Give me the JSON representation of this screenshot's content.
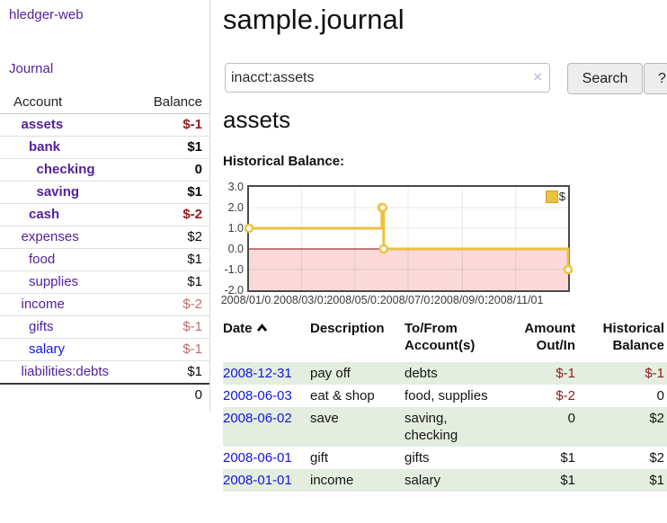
{
  "sidebar": {
    "brand": "hledger-web",
    "journal_link": "Journal",
    "accounts_table": {
      "header_account": "Account",
      "header_balance": "Balance",
      "rows": [
        {
          "name": "assets",
          "depth": 1,
          "bold": true,
          "balance": "$-1",
          "balance_style": "neg"
        },
        {
          "name": "bank",
          "depth": 2,
          "bold": true,
          "balance": "$1",
          "balance_style": ""
        },
        {
          "name": "checking",
          "depth": 3,
          "bold": true,
          "balance": "0",
          "balance_style": ""
        },
        {
          "name": "saving",
          "depth": 3,
          "bold": true,
          "balance": "$1",
          "balance_style": ""
        },
        {
          "name": "cash",
          "depth": 2,
          "bold": true,
          "balance": "$-2",
          "balance_style": "neg"
        },
        {
          "name": "expenses",
          "depth": 1,
          "bold": false,
          "balance": "$2",
          "balance_style": ""
        },
        {
          "name": "food",
          "depth": 2,
          "bold": false,
          "balance": "$1",
          "balance_style": ""
        },
        {
          "name": "supplies",
          "depth": 2,
          "bold": false,
          "balance": "$1",
          "balance_style": ""
        },
        {
          "name": "income",
          "depth": 1,
          "bold": false,
          "balance": "$-2",
          "balance_style": "muted"
        },
        {
          "name": "gifts",
          "depth": 2,
          "bold": false,
          "balance": "$-1",
          "balance_style": "muted"
        },
        {
          "name": "salary",
          "depth": 2,
          "bold": false,
          "name_style": "blue",
          "balance": "$-1",
          "balance_style": "muted"
        },
        {
          "name": "liabilities:debts",
          "depth": 1,
          "bold": false,
          "balance": "$1",
          "balance_style": ""
        }
      ],
      "total": "0"
    }
  },
  "main": {
    "title": "sample.journal",
    "search": {
      "value": "inacct:assets",
      "clear": "×",
      "button": "Search",
      "help": "?"
    },
    "account_heading": "assets",
    "chart_label": "Historical Balance:"
  },
  "chart_data": {
    "type": "line",
    "step": true,
    "title": "Historical Balance",
    "series": [
      {
        "name": "$",
        "color": "#edc240",
        "points": [
          [
            "2008-01-01",
            1
          ],
          [
            "2008-06-01",
            2
          ],
          [
            "2008-06-02",
            2
          ],
          [
            "2008-06-03",
            0
          ],
          [
            "2008-12-31",
            -1
          ]
        ]
      }
    ],
    "x_range": [
      "2008-01-01",
      "2008-12-31"
    ],
    "x_ticks": [
      "2008/01/01",
      "2008/03/01",
      "2008/05/01",
      "2008/07/01",
      "2008/09/01",
      "2008/11/01"
    ],
    "y_ticks": [
      3.0,
      2.0,
      1.0,
      0.0,
      -1.0,
      -2.0
    ],
    "ylim": [
      -2,
      3
    ],
    "grid": true,
    "negative_fill": "#fcd9d9",
    "zero_line_color": "#8b0000",
    "legend_position": "top-right"
  },
  "register": {
    "headers": [
      "Date",
      "Description",
      "To/From Account(s)",
      "Amount Out/In",
      "Historical Balance"
    ],
    "rows": [
      {
        "date": "2008-12-31",
        "description": "pay off",
        "accounts": [
          "debts"
        ],
        "amount": "$-1",
        "amount_neg": true,
        "balance": "$-1",
        "balance_neg": true
      },
      {
        "date": "2008-06-03",
        "description": "eat & shop",
        "accounts": [
          "food, supplies"
        ],
        "amount": "$-2",
        "amount_neg": true,
        "balance": "0",
        "balance_neg": false
      },
      {
        "date": "2008-06-02",
        "description": "save",
        "accounts": [
          "saving,",
          "checking"
        ],
        "amount": "0",
        "amount_neg": false,
        "balance": "$2",
        "balance_neg": false
      },
      {
        "date": "2008-06-01",
        "description": "gift",
        "accounts": [
          "gifts"
        ],
        "amount": "$1",
        "amount_neg": false,
        "balance": "$2",
        "balance_neg": false
      },
      {
        "date": "2008-01-01",
        "description": "income",
        "accounts": [
          "salary"
        ],
        "amount": "$1",
        "amount_neg": false,
        "balance": "$1",
        "balance_neg": false
      }
    ]
  }
}
